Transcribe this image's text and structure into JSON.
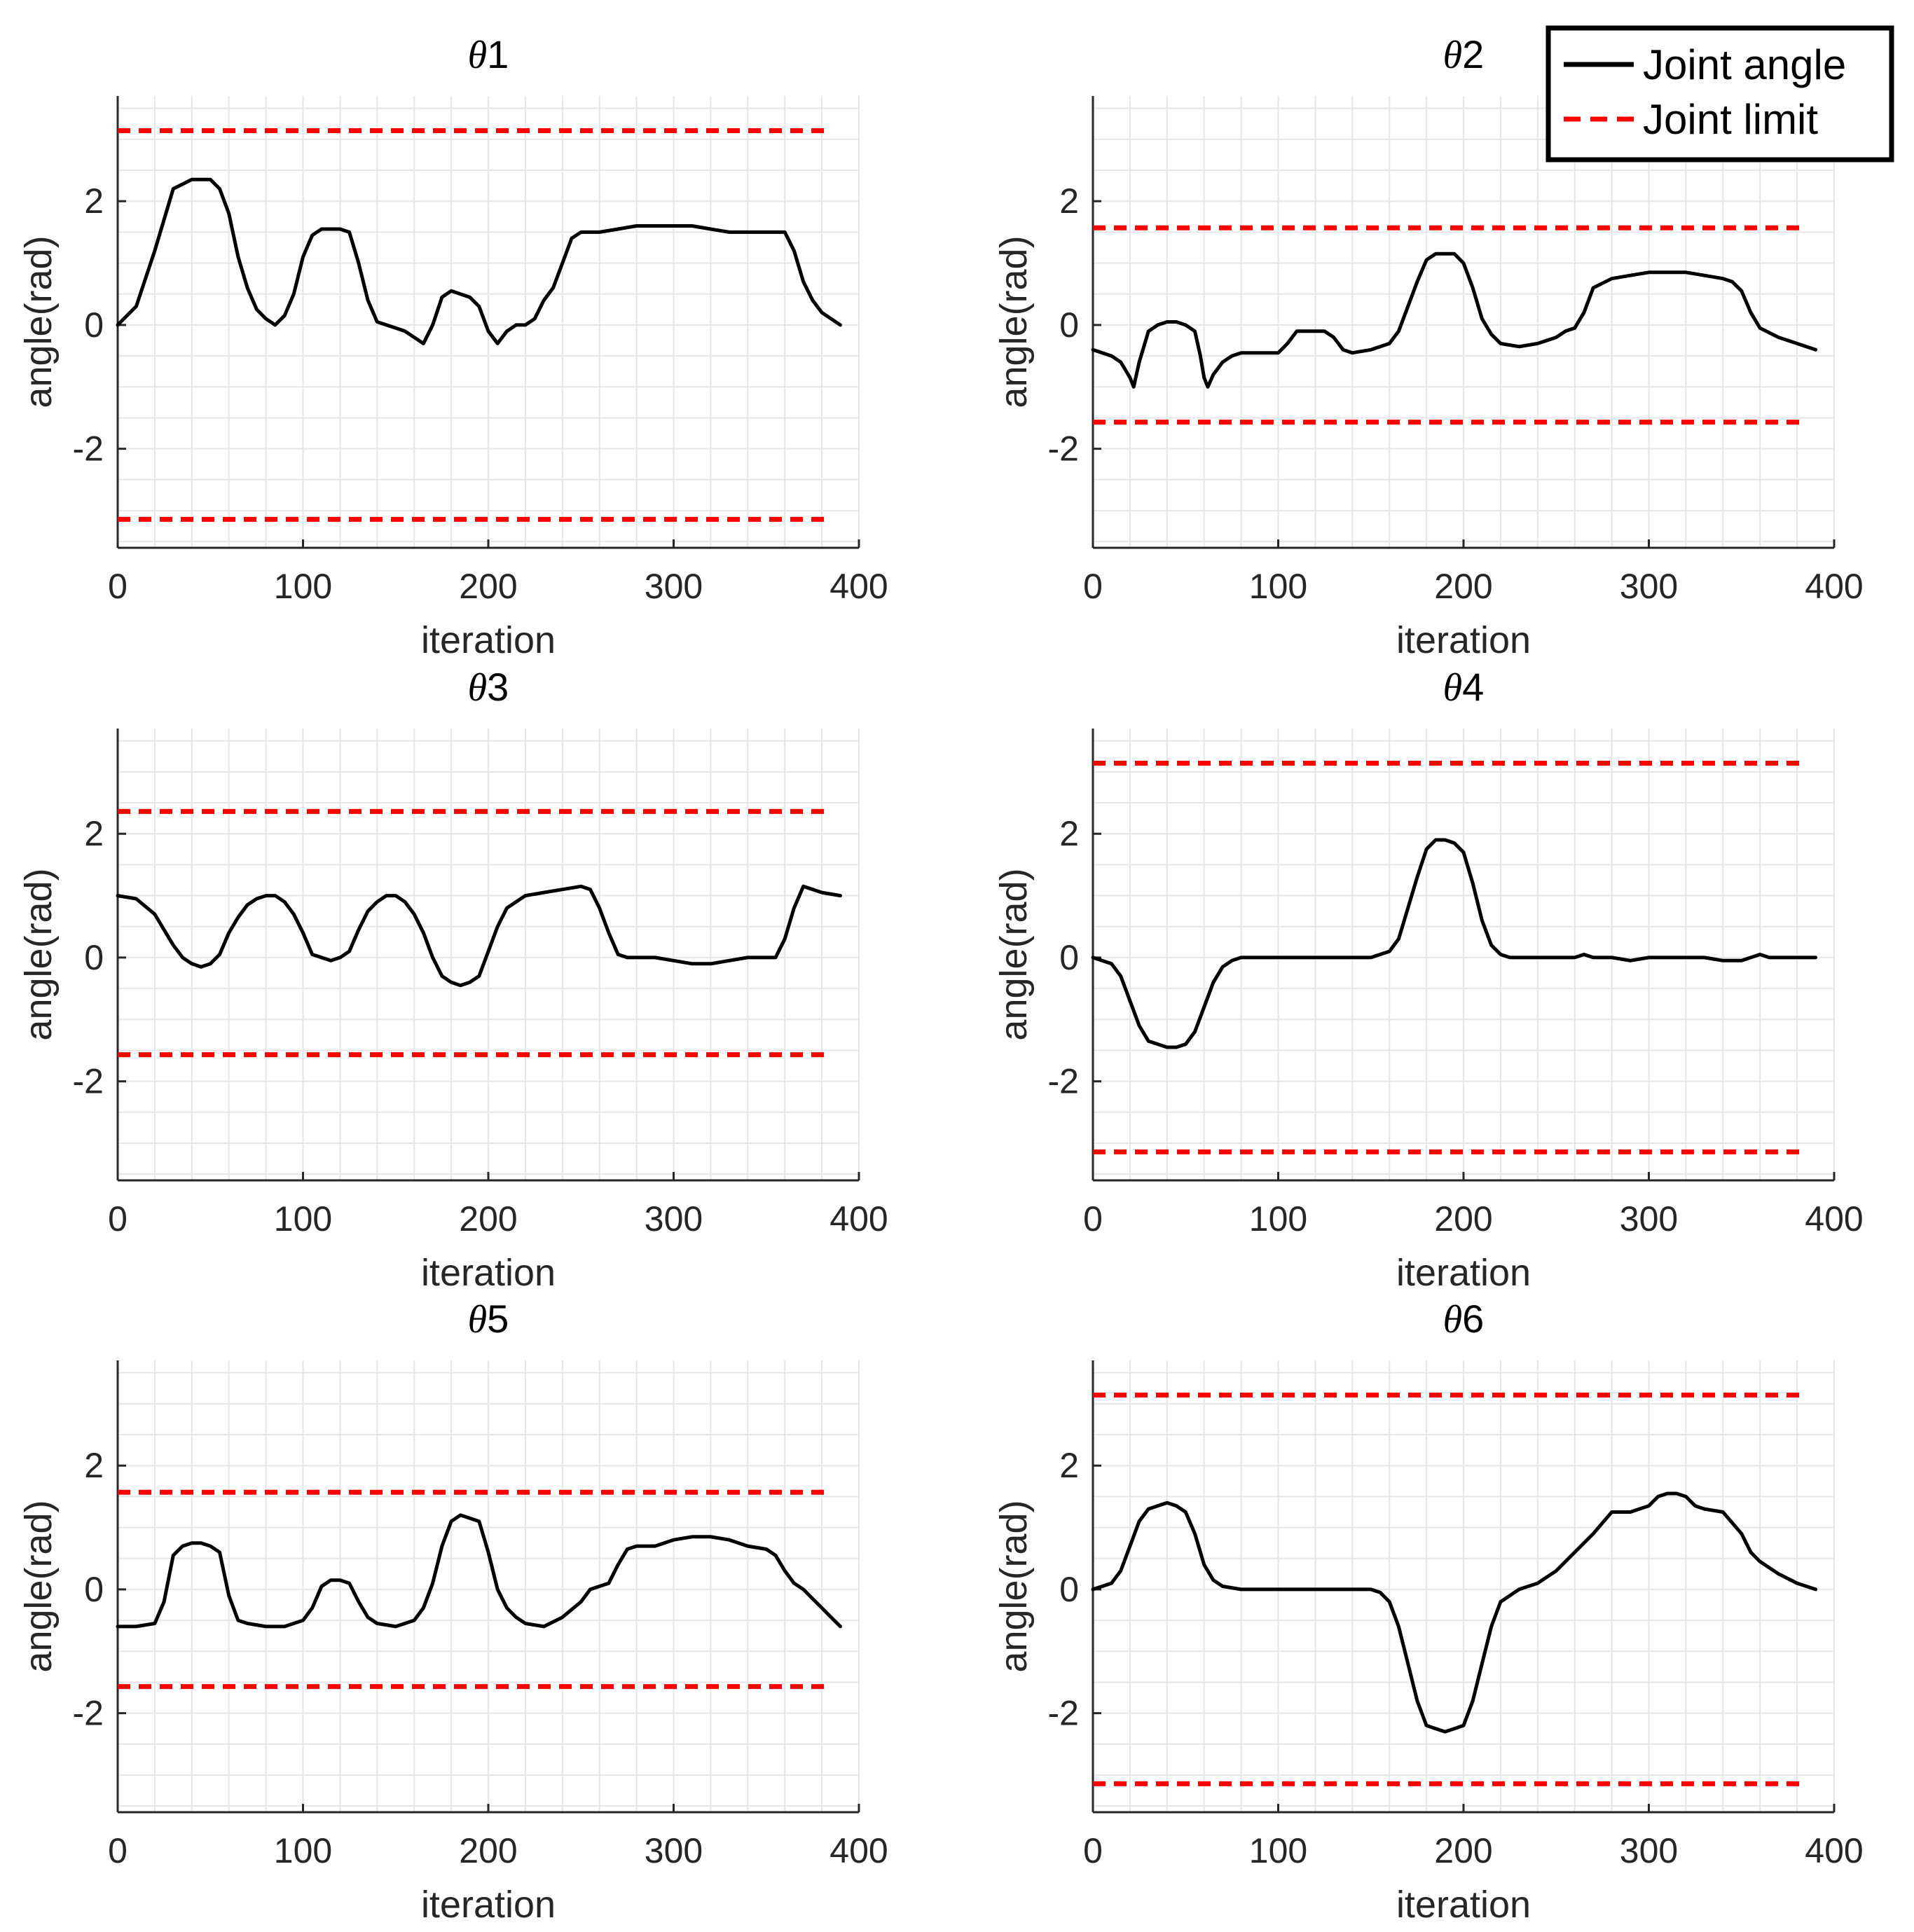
{
  "chart_data": [
    {
      "type": "line",
      "title_symbol": "θ",
      "title_index": "1",
      "xlabel": "iteration",
      "ylabel": "angle(rad)",
      "xlim": [
        0,
        400
      ],
      "ylim": [
        -3.6,
        3.7
      ],
      "xticks": [
        "0",
        "100",
        "200",
        "300",
        "400"
      ],
      "yticks": [
        "2",
        "0",
        "-2"
      ],
      "ytick_values": [
        2,
        0,
        -2
      ],
      "xtick_values": [
        0,
        100,
        200,
        300,
        400
      ],
      "limits": [
        3.14,
        -3.14
      ],
      "limit_x_range": [
        0,
        383
      ],
      "series": [
        {
          "name": "Joint angle",
          "x": [
            0,
            10,
            20,
            30,
            40,
            50,
            55,
            60,
            65,
            70,
            75,
            80,
            85,
            90,
            95,
            100,
            105,
            110,
            115,
            120,
            125,
            130,
            135,
            140,
            145,
            150,
            155,
            160,
            165,
            170,
            175,
            180,
            185,
            190,
            195,
            200,
            205,
            210,
            215,
            220,
            225,
            230,
            235,
            240,
            245,
            250,
            255,
            260,
            270,
            280,
            290,
            300,
            310,
            320,
            330,
            340,
            350,
            360,
            365,
            370,
            375,
            380,
            385,
            390
          ],
          "y": [
            0,
            0.3,
            1.2,
            2.2,
            2.35,
            2.35,
            2.2,
            1.8,
            1.1,
            0.6,
            0.25,
            0.1,
            0,
            0.15,
            0.5,
            1.1,
            1.45,
            1.55,
            1.55,
            1.55,
            1.5,
            1.0,
            0.4,
            0.05,
            0,
            -0.05,
            -0.1,
            -0.2,
            -0.3,
            0,
            0.45,
            0.55,
            0.5,
            0.45,
            0.3,
            -0.1,
            -0.3,
            -0.1,
            0,
            0,
            0.1,
            0.4,
            0.6,
            1.0,
            1.4,
            1.5,
            1.5,
            1.5,
            1.55,
            1.6,
            1.6,
            1.6,
            1.6,
            1.55,
            1.5,
            1.5,
            1.5,
            1.5,
            1.2,
            0.7,
            0.4,
            0.2,
            0.1,
            0
          ]
        }
      ]
    },
    {
      "type": "line",
      "title_symbol": "θ",
      "title_index": "2",
      "xlabel": "iteration",
      "ylabel": "angle(rad)",
      "xlim": [
        0,
        400
      ],
      "ylim": [
        -3.6,
        3.7
      ],
      "xticks": [
        "0",
        "100",
        "200",
        "300",
        "400"
      ],
      "yticks": [
        "2",
        "0",
        "-2"
      ],
      "ytick_values": [
        2,
        0,
        -2
      ],
      "xtick_values": [
        0,
        100,
        200,
        300,
        400
      ],
      "limits": [
        1.57,
        -1.57
      ],
      "limit_x_range": [
        0,
        383
      ],
      "series": [
        {
          "name": "Joint angle",
          "x": [
            0,
            10,
            15,
            20,
            22,
            25,
            30,
            35,
            40,
            45,
            50,
            55,
            58,
            60,
            62,
            65,
            70,
            75,
            80,
            90,
            100,
            105,
            110,
            115,
            120,
            125,
            130,
            135,
            140,
            150,
            160,
            165,
            170,
            175,
            180,
            185,
            190,
            195,
            200,
            205,
            210,
            215,
            220,
            230,
            240,
            250,
            255,
            260,
            265,
            270,
            280,
            290,
            300,
            310,
            320,
            330,
            340,
            345,
            350,
            355,
            360,
            370,
            380,
            390
          ],
          "y": [
            -0.4,
            -0.5,
            -0.6,
            -0.85,
            -1.0,
            -0.6,
            -0.1,
            0,
            0.05,
            0.05,
            0,
            -0.1,
            -0.5,
            -0.85,
            -1.0,
            -0.8,
            -0.6,
            -0.5,
            -0.45,
            -0.45,
            -0.45,
            -0.3,
            -0.1,
            -0.1,
            -0.1,
            -0.1,
            -0.2,
            -0.4,
            -0.45,
            -0.4,
            -0.3,
            -0.1,
            0.3,
            0.7,
            1.05,
            1.15,
            1.15,
            1.15,
            1.0,
            0.6,
            0.1,
            -0.15,
            -0.3,
            -0.35,
            -0.3,
            -0.2,
            -0.1,
            -0.05,
            0.2,
            0.6,
            0.75,
            0.8,
            0.85,
            0.85,
            0.85,
            0.8,
            0.75,
            0.7,
            0.55,
            0.2,
            -0.05,
            -0.2,
            -0.3,
            -0.4
          ]
        }
      ]
    },
    {
      "type": "line",
      "title_symbol": "θ",
      "title_index": "3",
      "xlabel": "iteration",
      "ylabel": "angle(rad)",
      "xlim": [
        0,
        400
      ],
      "ylim": [
        -3.6,
        3.7
      ],
      "xticks": [
        "0",
        "100",
        "200",
        "300",
        "400"
      ],
      "yticks": [
        "2",
        "0",
        "-2"
      ],
      "ytick_values": [
        2,
        0,
        -2
      ],
      "xtick_values": [
        0,
        100,
        200,
        300,
        400
      ],
      "limits": [
        2.36,
        -1.57
      ],
      "limit_x_range": [
        0,
        383
      ],
      "series": [
        {
          "name": "Joint angle",
          "x": [
            0,
            10,
            20,
            25,
            30,
            35,
            40,
            45,
            50,
            55,
            60,
            65,
            70,
            75,
            80,
            85,
            90,
            95,
            100,
            105,
            110,
            115,
            120,
            125,
            130,
            135,
            140,
            145,
            150,
            155,
            160,
            165,
            170,
            175,
            180,
            185,
            190,
            195,
            200,
            205,
            210,
            215,
            220,
            230,
            240,
            250,
            255,
            260,
            265,
            270,
            275,
            280,
            290,
            300,
            310,
            320,
            330,
            340,
            350,
            355,
            360,
            365,
            370,
            380,
            390
          ],
          "y": [
            1.0,
            0.95,
            0.7,
            0.45,
            0.2,
            0,
            -0.1,
            -0.15,
            -0.1,
            0.05,
            0.4,
            0.65,
            0.85,
            0.95,
            1.0,
            1.0,
            0.9,
            0.7,
            0.4,
            0.05,
            0,
            -0.05,
            0,
            0.1,
            0.45,
            0.75,
            0.9,
            1.0,
            1.0,
            0.9,
            0.7,
            0.4,
            0,
            -0.3,
            -0.4,
            -0.45,
            -0.4,
            -0.3,
            0.1,
            0.5,
            0.8,
            0.9,
            1.0,
            1.05,
            1.1,
            1.15,
            1.1,
            0.8,
            0.4,
            0.05,
            0,
            0,
            0,
            -0.05,
            -0.1,
            -0.1,
            -0.05,
            0,
            0,
            0,
            0.3,
            0.8,
            1.15,
            1.05,
            1.0
          ]
        }
      ]
    },
    {
      "type": "line",
      "title_symbol": "θ",
      "title_index": "4",
      "xlabel": "iteration",
      "ylabel": "angle(rad)",
      "xlim": [
        0,
        400
      ],
      "ylim": [
        -3.6,
        3.7
      ],
      "xticks": [
        "0",
        "100",
        "200",
        "300",
        "400"
      ],
      "yticks": [
        "2",
        "0",
        "-2"
      ],
      "ytick_values": [
        2,
        0,
        -2
      ],
      "xtick_values": [
        0,
        100,
        200,
        300,
        400
      ],
      "limits": [
        3.14,
        -3.14
      ],
      "limit_x_range": [
        0,
        383
      ],
      "series": [
        {
          "name": "Joint angle",
          "x": [
            0,
            10,
            15,
            20,
            25,
            30,
            35,
            40,
            45,
            50,
            55,
            60,
            65,
            70,
            75,
            80,
            90,
            100,
            110,
            120,
            130,
            140,
            150,
            160,
            165,
            170,
            175,
            180,
            185,
            190,
            195,
            200,
            205,
            210,
            215,
            220,
            225,
            230,
            240,
            250,
            260,
            265,
            270,
            280,
            290,
            300,
            310,
            320,
            330,
            340,
            350,
            360,
            365,
            370,
            380,
            390
          ],
          "y": [
            0,
            -0.1,
            -0.3,
            -0.7,
            -1.1,
            -1.35,
            -1.4,
            -1.45,
            -1.45,
            -1.4,
            -1.2,
            -0.8,
            -0.4,
            -0.15,
            -0.05,
            0,
            0,
            0,
            0,
            0,
            0,
            0,
            0,
            0.1,
            0.3,
            0.8,
            1.3,
            1.75,
            1.9,
            1.9,
            1.85,
            1.7,
            1.2,
            0.6,
            0.2,
            0.05,
            0,
            0,
            0,
            0,
            0,
            0.05,
            0,
            0,
            -0.05,
            0,
            0,
            0,
            0,
            -0.05,
            -0.05,
            0.05,
            0,
            0,
            0,
            0
          ]
        }
      ]
    },
    {
      "type": "line",
      "title_symbol": "θ",
      "title_index": "5",
      "xlabel": "iteration",
      "ylabel": "angle(rad)",
      "xlim": [
        0,
        400
      ],
      "ylim": [
        -3.6,
        3.7
      ],
      "xticks": [
        "0",
        "100",
        "200",
        "300",
        "400"
      ],
      "yticks": [
        "2",
        "0",
        "-2"
      ],
      "ytick_values": [
        2,
        0,
        -2
      ],
      "xtick_values": [
        0,
        100,
        200,
        300,
        400
      ],
      "limits": [
        1.57,
        -1.57
      ],
      "limit_x_range": [
        0,
        383
      ],
      "series": [
        {
          "name": "Joint angle",
          "x": [
            0,
            10,
            20,
            25,
            30,
            35,
            40,
            45,
            50,
            55,
            60,
            65,
            70,
            80,
            90,
            100,
            105,
            110,
            115,
            120,
            125,
            130,
            135,
            140,
            150,
            160,
            165,
            170,
            175,
            180,
            185,
            190,
            195,
            200,
            205,
            210,
            215,
            220,
            230,
            240,
            250,
            255,
            260,
            265,
            270,
            275,
            280,
            290,
            300,
            310,
            320,
            330,
            340,
            350,
            355,
            360,
            365,
            370,
            375,
            380,
            385,
            390
          ],
          "y": [
            -0.6,
            -0.6,
            -0.55,
            -0.2,
            0.55,
            0.7,
            0.75,
            0.75,
            0.7,
            0.6,
            -0.1,
            -0.5,
            -0.55,
            -0.6,
            -0.6,
            -0.5,
            -0.3,
            0.05,
            0.15,
            0.15,
            0.1,
            -0.2,
            -0.45,
            -0.55,
            -0.6,
            -0.5,
            -0.3,
            0.1,
            0.7,
            1.1,
            1.2,
            1.15,
            1.1,
            0.6,
            0,
            -0.3,
            -0.45,
            -0.55,
            -0.6,
            -0.45,
            -0.2,
            0,
            0.05,
            0.1,
            0.4,
            0.65,
            0.7,
            0.7,
            0.8,
            0.85,
            0.85,
            0.8,
            0.7,
            0.65,
            0.55,
            0.3,
            0.1,
            0,
            -0.15,
            -0.3,
            -0.45,
            -0.6
          ]
        }
      ]
    },
    {
      "type": "line",
      "title_symbol": "θ",
      "title_index": "6",
      "xlabel": "iteration",
      "ylabel": "angle(rad)",
      "xlim": [
        0,
        400
      ],
      "ylim": [
        -3.6,
        3.7
      ],
      "xticks": [
        "0",
        "100",
        "200",
        "300",
        "400"
      ],
      "yticks": [
        "2",
        "0",
        "-2"
      ],
      "ytick_values": [
        2,
        0,
        -2
      ],
      "xtick_values": [
        0,
        100,
        200,
        300,
        400
      ],
      "limits": [
        3.14,
        -3.14
      ],
      "limit_x_range": [
        0,
        383
      ],
      "series": [
        {
          "name": "Joint angle",
          "x": [
            0,
            10,
            15,
            20,
            25,
            30,
            35,
            40,
            45,
            50,
            55,
            60,
            65,
            70,
            80,
            90,
            100,
            110,
            120,
            130,
            140,
            150,
            155,
            160,
            165,
            170,
            175,
            180,
            185,
            190,
            195,
            200,
            205,
            210,
            215,
            220,
            225,
            230,
            240,
            250,
            260,
            270,
            280,
            290,
            300,
            305,
            310,
            315,
            320,
            325,
            330,
            340,
            350,
            355,
            360,
            370,
            380,
            390
          ],
          "y": [
            0,
            0.1,
            0.3,
            0.7,
            1.1,
            1.3,
            1.35,
            1.4,
            1.35,
            1.25,
            0.9,
            0.4,
            0.15,
            0.05,
            0,
            0,
            0,
            0,
            0,
            0,
            0,
            0,
            -0.05,
            -0.2,
            -0.6,
            -1.2,
            -1.8,
            -2.2,
            -2.25,
            -2.3,
            -2.25,
            -2.2,
            -1.8,
            -1.2,
            -0.6,
            -0.2,
            -0.1,
            0,
            0.1,
            0.3,
            0.6,
            0.9,
            1.25,
            1.25,
            1.35,
            1.5,
            1.55,
            1.55,
            1.5,
            1.35,
            1.3,
            1.25,
            0.9,
            0.6,
            0.45,
            0.25,
            0.1,
            0
          ]
        }
      ]
    }
  ],
  "legend": {
    "entries": [
      {
        "label": "Joint angle",
        "style": "solid",
        "color": "#000000"
      },
      {
        "label": "Joint limit",
        "style": "dashed",
        "color": "#ff0000"
      }
    ],
    "placement": "top-right"
  },
  "colors": {
    "joint_angle": "#000000",
    "joint_limit": "#ff0000",
    "grid": "#e6e6e6",
    "axis": "#262626",
    "tick_text": "#262626"
  }
}
